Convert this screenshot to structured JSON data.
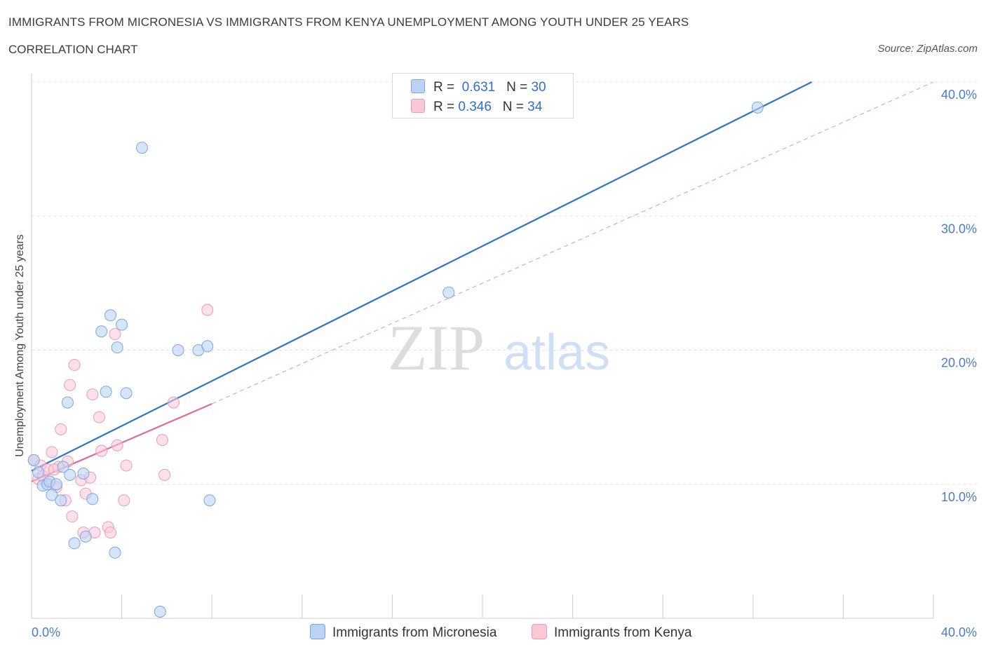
{
  "header": {
    "title": "IMMIGRANTS FROM MICRONESIA VS IMMIGRANTS FROM KENYA UNEMPLOYMENT AMONG YOUTH UNDER 25 YEARS",
    "subtitle": "CORRELATION CHART",
    "source": "Source: ZipAtlas.com"
  },
  "watermark": {
    "zip": "ZIP",
    "atlas": "atlas"
  },
  "legend": {
    "rows": [
      {
        "r_label": "R =",
        "r_value": "0.631",
        "n_label": "N =",
        "n_value": "30"
      },
      {
        "r_label": "R =",
        "r_value": "0.346",
        "n_label": "N =",
        "n_value": "34"
      }
    ]
  },
  "colors": {
    "micronesia_fill": "#bcd3f5",
    "micronesia_stroke": "#7aa6e3",
    "micronesia_line": "#2f72cc",
    "kenya_fill": "#f9c9d8",
    "kenya_stroke": "#ee9ab6",
    "kenya_line": "#e26a93",
    "grid": "#e3e3e3",
    "tick_text": "#4a7cc7"
  },
  "chart_data": {
    "type": "scatter",
    "title": "IMMIGRANTS FROM MICRONESIA VS IMMIGRANTS FROM KENYA UNEMPLOYMENT AMONG YOUTH UNDER 25 YEARS",
    "xlabel": "",
    "ylabel": "Unemployment Among Youth under 25 years",
    "xlim": [
      0,
      40
    ],
    "ylim": [
      0,
      40
    ],
    "x_tick_labels": [
      "0.0%",
      "40.0%"
    ],
    "y_tick_labels": [
      "10.0%",
      "20.0%",
      "30.0%",
      "40.0%"
    ],
    "y_tick_values": [
      10,
      20,
      30,
      40
    ],
    "series": [
      {
        "name": "Immigrants from Micronesia",
        "r": 0.631,
        "n": 30,
        "points": [
          [
            0.1,
            11.8
          ],
          [
            0.3,
            10.9
          ],
          [
            0.5,
            9.9
          ],
          [
            0.7,
            10.0
          ],
          [
            0.8,
            10.2
          ],
          [
            0.9,
            9.2
          ],
          [
            1.1,
            10.0
          ],
          [
            1.3,
            8.8
          ],
          [
            1.4,
            11.3
          ],
          [
            1.6,
            16.1
          ],
          [
            1.7,
            10.7
          ],
          [
            1.9,
            5.6
          ],
          [
            2.3,
            10.8
          ],
          [
            2.4,
            6.1
          ],
          [
            2.7,
            8.9
          ],
          [
            3.1,
            21.4
          ],
          [
            3.3,
            16.9
          ],
          [
            3.5,
            22.6
          ],
          [
            3.7,
            4.9
          ],
          [
            3.8,
            20.2
          ],
          [
            4.0,
            21.9
          ],
          [
            4.2,
            16.8
          ],
          [
            4.9,
            35.1
          ],
          [
            5.7,
            0.5
          ],
          [
            6.5,
            20.0
          ],
          [
            7.4,
            20.0
          ],
          [
            7.8,
            20.3
          ],
          [
            7.9,
            8.8
          ],
          [
            18.5,
            24.3
          ],
          [
            32.2,
            38.1
          ]
        ],
        "trend": {
          "x_start": 0.0,
          "y_start": 11.0,
          "x_end": 34.6,
          "y_end": 40.0,
          "style": "solid"
        }
      },
      {
        "name": "Immigrants from Kenya",
        "r": 0.346,
        "n": 34,
        "points": [
          [
            0.1,
            11.8
          ],
          [
            0.3,
            10.4
          ],
          [
            0.4,
            11.4
          ],
          [
            0.5,
            10.6
          ],
          [
            0.7,
            11.1
          ],
          [
            0.8,
            10.2
          ],
          [
            0.9,
            12.4
          ],
          [
            1.1,
            9.8
          ],
          [
            1.2,
            11.3
          ],
          [
            1.3,
            14.1
          ],
          [
            1.5,
            8.8
          ],
          [
            1.6,
            11.7
          ],
          [
            1.7,
            17.4
          ],
          [
            1.8,
            7.6
          ],
          [
            1.9,
            18.9
          ],
          [
            2.2,
            10.3
          ],
          [
            2.3,
            6.4
          ],
          [
            2.4,
            9.3
          ],
          [
            2.6,
            10.5
          ],
          [
            2.7,
            16.7
          ],
          [
            2.8,
            6.4
          ],
          [
            3.0,
            15.0
          ],
          [
            3.1,
            12.5
          ],
          [
            3.4,
            6.8
          ],
          [
            3.5,
            6.4
          ],
          [
            3.7,
            21.2
          ],
          [
            3.8,
            12.9
          ],
          [
            4.1,
            8.8
          ],
          [
            4.2,
            11.4
          ],
          [
            5.8,
            13.3
          ],
          [
            5.9,
            10.7
          ],
          [
            6.3,
            16.1
          ],
          [
            7.8,
            23.0
          ],
          [
            1.0,
            11.1
          ]
        ],
        "trend": {
          "x_start": 0.0,
          "y_start": 10.2,
          "x_end": 8.0,
          "y_end": 16.0,
          "style": "solid",
          "extended_end_x": 40.0,
          "extended_end_y": 40.0,
          "extended_style": "dashed"
        }
      }
    ],
    "grid": true,
    "legend_position": "top-center"
  }
}
